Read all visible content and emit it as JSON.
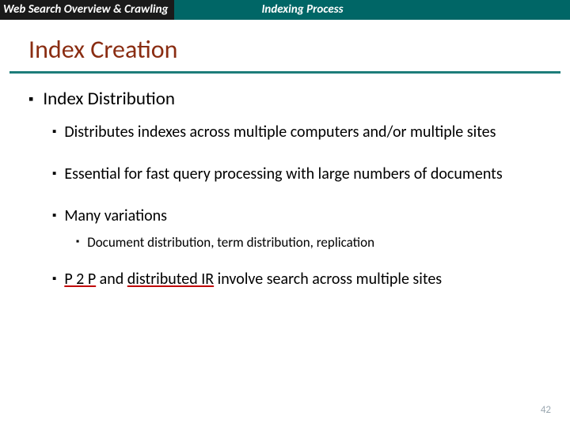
{
  "colors": {
    "header_left_bg": "#1a1a1a",
    "header_right_bg": "#006666",
    "title_color": "#8a2d12",
    "underline_color": "#1d7d7a",
    "text_color": "#000000",
    "pagenum_color": "#9aa7b0"
  },
  "header": {
    "left": "Web Search Overview & Crawling",
    "right": "Indexing Process"
  },
  "title": "Index Creation",
  "content": {
    "l1": "Index Distribution",
    "b1": "Distributes indexes across multiple computers and/or multiple sites",
    "b2": "Essential for fast query processing with large numbers of documents",
    "b3": "Many variations",
    "b3a": "Document distribution, term distribution, replication",
    "b4_prefix": "",
    "b4_term1": "P 2 P",
    "b4_mid": " and ",
    "b4_term2": "distributed IR",
    "b4_suffix": " involve search across multiple sites"
  },
  "page_number": "42"
}
